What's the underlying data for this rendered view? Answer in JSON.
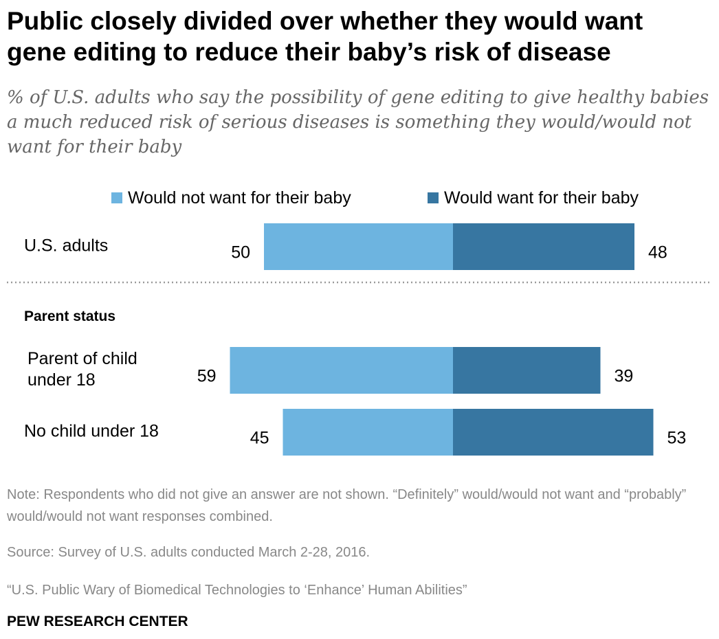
{
  "header": {
    "title": "Public closely divided over whether they would want gene editing to reduce their baby’s risk of disease",
    "subtitle": "% of U.S. adults who say the possibility of gene editing to give healthy babies a much reduced risk of serious diseases is something they would/would not want for their baby"
  },
  "chart_data": {
    "type": "bar",
    "orientation": "diverging-horizontal",
    "legend_position": "top",
    "grid": false,
    "series": [
      {
        "name": "Would not want for their baby",
        "color": "#6db4e0"
      },
      {
        "name": "Would want for their baby",
        "color": "#3776a1"
      }
    ],
    "groups": [
      {
        "heading": "",
        "rows": [
          {
            "label": [
              "U.S. adults"
            ],
            "values": [
              50,
              48
            ]
          }
        ]
      },
      {
        "heading": "Parent status",
        "rows": [
          {
            "label": [
              "Parent of child",
              "under 18"
            ],
            "values": [
              59,
              39
            ]
          },
          {
            "label": [
              "No child under 18"
            ],
            "values": [
              45,
              53
            ]
          }
        ]
      }
    ]
  },
  "footer": {
    "note": "Note: Respondents who did not give an answer are not shown. “Definitely” would/would not want and “probably” would/would not want responses combined.",
    "source": "Source: Survey of U.S. adults conducted March 2-28, 2016.",
    "report": "“U.S. Public Wary of Biomedical Technologies to ‘Enhance’ Human Abilities”",
    "brand": "PEW RESEARCH CENTER"
  }
}
